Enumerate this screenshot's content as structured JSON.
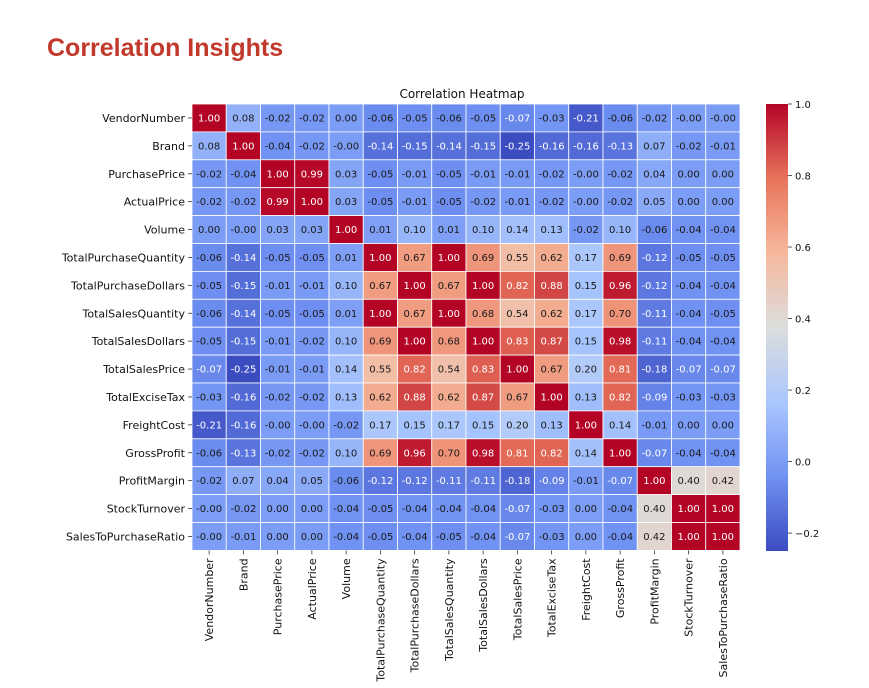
{
  "page": {
    "title": "Correlation Insights"
  },
  "chart_data": {
    "type": "heatmap",
    "title": "Correlation Heatmap",
    "labels": [
      "VendorNumber",
      "Brand",
      "PurchasePrice",
      "ActualPrice",
      "Volume",
      "TotalPurchaseQuantity",
      "TotalPurchaseDollars",
      "TotalSalesQuantity",
      "TotalSalesDollars",
      "TotalSalesPrice",
      "TotalExciseTax",
      "FreightCost",
      "GrossProfit",
      "ProfitMargin",
      "StockTurnover",
      "SalesToPurchaseRatio"
    ],
    "matrix": [
      [
        1.0,
        0.08,
        -0.02,
        -0.02,
        0.0,
        -0.06,
        -0.05,
        -0.06,
        -0.05,
        -0.07,
        -0.03,
        -0.21,
        -0.06,
        -0.02,
        -0.0,
        -0.0
      ],
      [
        0.08,
        1.0,
        -0.04,
        -0.02,
        -0.0,
        -0.14,
        -0.15,
        -0.14,
        -0.15,
        -0.25,
        -0.16,
        -0.16,
        -0.13,
        0.07,
        -0.02,
        -0.01
      ],
      [
        -0.02,
        -0.04,
        1.0,
        0.99,
        0.03,
        -0.05,
        -0.01,
        -0.05,
        -0.01,
        -0.01,
        -0.02,
        -0.0,
        -0.02,
        0.04,
        0.0,
        0.0
      ],
      [
        -0.02,
        -0.02,
        0.99,
        1.0,
        0.03,
        -0.05,
        -0.01,
        -0.05,
        -0.02,
        -0.01,
        -0.02,
        -0.0,
        -0.02,
        0.05,
        0.0,
        0.0
      ],
      [
        0.0,
        -0.0,
        0.03,
        0.03,
        1.0,
        0.01,
        0.1,
        0.01,
        0.1,
        0.14,
        0.13,
        -0.02,
        0.1,
        -0.06,
        -0.04,
        -0.04
      ],
      [
        -0.06,
        -0.14,
        -0.05,
        -0.05,
        0.01,
        1.0,
        0.67,
        1.0,
        0.69,
        0.55,
        0.62,
        0.17,
        0.69,
        -0.12,
        -0.05,
        -0.05
      ],
      [
        -0.05,
        -0.15,
        -0.01,
        -0.01,
        0.1,
        0.67,
        1.0,
        0.67,
        1.0,
        0.82,
        0.88,
        0.15,
        0.96,
        -0.12,
        -0.04,
        -0.04
      ],
      [
        -0.06,
        -0.14,
        -0.05,
        -0.05,
        0.01,
        1.0,
        0.67,
        1.0,
        0.68,
        0.54,
        0.62,
        0.17,
        0.7,
        -0.11,
        -0.04,
        -0.05
      ],
      [
        -0.05,
        -0.15,
        -0.01,
        -0.02,
        0.1,
        0.69,
        1.0,
        0.68,
        1.0,
        0.83,
        0.87,
        0.15,
        0.98,
        -0.11,
        -0.04,
        -0.04
      ],
      [
        -0.07,
        -0.25,
        -0.01,
        -0.01,
        0.14,
        0.55,
        0.82,
        0.54,
        0.83,
        1.0,
        0.67,
        0.2,
        0.81,
        -0.18,
        -0.07,
        -0.07
      ],
      [
        -0.03,
        -0.16,
        -0.02,
        -0.02,
        0.13,
        0.62,
        0.88,
        0.62,
        0.87,
        0.67,
        1.0,
        0.13,
        0.82,
        -0.09,
        -0.03,
        -0.03
      ],
      [
        -0.21,
        -0.16,
        -0.0,
        -0.0,
        -0.02,
        0.17,
        0.15,
        0.17,
        0.15,
        0.2,
        0.13,
        1.0,
        0.14,
        -0.01,
        0.0,
        0.0
      ],
      [
        -0.06,
        -0.13,
        -0.02,
        -0.02,
        0.1,
        0.69,
        0.96,
        0.7,
        0.98,
        0.81,
        0.82,
        0.14,
        1.0,
        -0.07,
        -0.04,
        -0.04
      ],
      [
        -0.02,
        0.07,
        0.04,
        0.05,
        -0.06,
        -0.12,
        -0.12,
        -0.11,
        -0.11,
        -0.18,
        -0.09,
        -0.01,
        -0.07,
        1.0,
        0.4,
        0.42
      ],
      [
        -0.0,
        -0.02,
        0.0,
        0.0,
        -0.04,
        -0.05,
        -0.04,
        -0.04,
        -0.04,
        -0.07,
        -0.03,
        0.0,
        -0.04,
        0.4,
        1.0,
        1.0
      ],
      [
        -0.0,
        -0.01,
        0.0,
        0.0,
        -0.04,
        -0.05,
        -0.04,
        -0.05,
        -0.04,
        -0.07,
        -0.03,
        0.0,
        -0.04,
        0.42,
        1.0,
        1.0
      ]
    ],
    "colorscale": {
      "name": "coolwarm",
      "min": -0.25,
      "max": 1.0,
      "stops": [
        "#3b4cc0",
        "#7092f3",
        "#aac7fd",
        "#dcdddd",
        "#f7b89c",
        "#e7745b",
        "#b40426"
      ]
    },
    "colorbar_ticks": [
      "1.0",
      "0.8",
      "0.6",
      "0.4",
      "0.2",
      "0.0",
      "−0.2"
    ],
    "annotations": true,
    "xlabel": "",
    "ylabel": ""
  }
}
